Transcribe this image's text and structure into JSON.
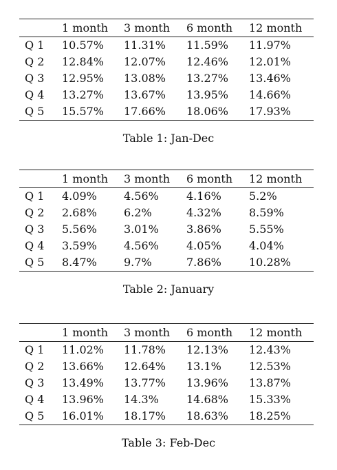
{
  "columns": [
    "",
    "1 month",
    "3 month",
    "6 month",
    "12 month"
  ],
  "tables": [
    {
      "caption": "Table 1:  Jan-Dec",
      "rows": [
        {
          "label": "Q 1",
          "values": [
            "10.57%",
            "11.31%",
            "11.59%",
            "11.97%"
          ]
        },
        {
          "label": "Q 2",
          "values": [
            "12.84%",
            "12.07%",
            "12.46%",
            "12.01%"
          ]
        },
        {
          "label": "Q 3",
          "values": [
            "12.95%",
            "13.08%",
            "13.27%",
            "13.46%"
          ]
        },
        {
          "label": "Q 4",
          "values": [
            "13.27%",
            "13.67%",
            "13.95%",
            "14.66%"
          ]
        },
        {
          "label": "Q 5",
          "values": [
            "15.57%",
            "17.66%",
            "18.06%",
            "17.93%"
          ]
        }
      ]
    },
    {
      "caption": "Table 2:  January",
      "rows": [
        {
          "label": "Q 1",
          "values": [
            "4.09%",
            "4.56%",
            "4.16%",
            "5.2%"
          ]
        },
        {
          "label": "Q 2",
          "values": [
            "2.68%",
            "6.2%",
            "4.32%",
            "8.59%"
          ]
        },
        {
          "label": "Q 3",
          "values": [
            "5.56%",
            "3.01%",
            "3.86%",
            "5.55%"
          ]
        },
        {
          "label": "Q 4",
          "values": [
            "3.59%",
            "4.56%",
            "4.05%",
            "4.04%"
          ]
        },
        {
          "label": "Q 5",
          "values": [
            "8.47%",
            "9.7%",
            "7.86%",
            "10.28%"
          ]
        }
      ]
    },
    {
      "caption": "Table 3:  Feb-Dec",
      "rows": [
        {
          "label": "Q 1",
          "values": [
            "11.02%",
            "11.78%",
            "12.13%",
            "12.43%"
          ]
        },
        {
          "label": "Q 2",
          "values": [
            "13.66%",
            "12.64%",
            "13.1%",
            "12.53%"
          ]
        },
        {
          "label": "Q 3",
          "values": [
            "13.49%",
            "13.77%",
            "13.96%",
            "13.87%"
          ]
        },
        {
          "label": "Q 4",
          "values": [
            "13.96%",
            "14.3%",
            "14.68%",
            "15.33%"
          ]
        },
        {
          "label": "Q 5",
          "values": [
            "16.01%",
            "18.17%",
            "18.63%",
            "18.25%"
          ]
        }
      ]
    }
  ]
}
